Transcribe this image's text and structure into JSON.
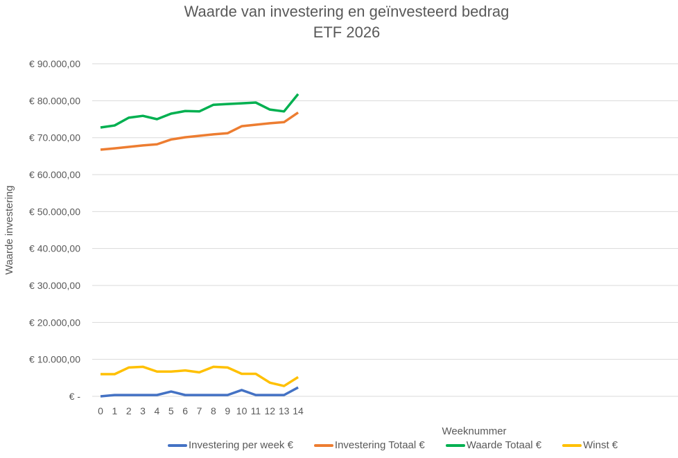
{
  "chart_data": {
    "type": "line",
    "title": "Waarde van investering en geïnvesteerd bedrag",
    "subtitle": "ETF 2026",
    "xlabel": "Weeknummer",
    "ylabel": "Waarde investering",
    "x": [
      0,
      1,
      2,
      3,
      4,
      5,
      6,
      7,
      8,
      9,
      10,
      11,
      12,
      13,
      14
    ],
    "ylim": [
      0,
      90000
    ],
    "yticks": [
      "€ -",
      "€ 10.000,00",
      "€ 20.000,00",
      "€ 30.000,00",
      "€ 40.000,00",
      "€ 50.000,00",
      "€ 60.000,00",
      "€ 70.000,00",
      "€ 80.000,00",
      "€ 90.000,00"
    ],
    "grid": true,
    "legend_position": "bottom",
    "series": [
      {
        "name": "Investering per week €",
        "color": "#4472C4",
        "values": [
          0,
          350,
          350,
          350,
          350,
          1300,
          350,
          350,
          350,
          350,
          1700,
          350,
          350,
          350,
          2400
        ]
      },
      {
        "name": "Investering Totaal €",
        "color": "#ED7D31",
        "values": [
          66750,
          67100,
          67500,
          67900,
          68200,
          69500,
          70100,
          70500,
          70900,
          71200,
          73100,
          73500,
          73900,
          74200,
          76800
        ]
      },
      {
        "name": "Waarde Totaal €",
        "color": "#00B050",
        "values": [
          72750,
          73300,
          75400,
          75900,
          75000,
          76500,
          77200,
          77100,
          78900,
          79100,
          79300,
          79500,
          77600,
          77100,
          81800
        ]
      },
      {
        "name": "Winst €",
        "color": "#FFC000",
        "values": [
          6000,
          6000,
          7800,
          8000,
          6700,
          6700,
          7000,
          6500,
          8000,
          7800,
          6100,
          6100,
          3700,
          2800,
          5200
        ]
      }
    ]
  }
}
